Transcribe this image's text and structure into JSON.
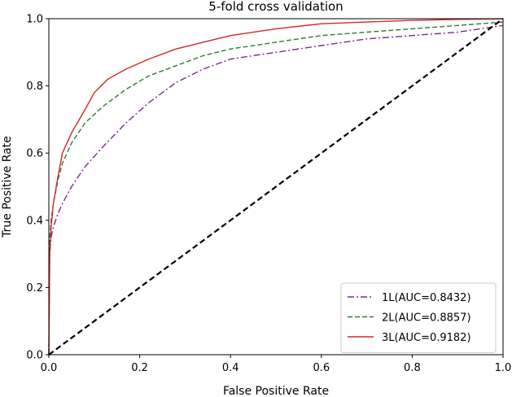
{
  "chart_data": {
    "type": "line",
    "title": "5-fold cross validation",
    "xlabel": "False Positive Rate",
    "ylabel": "True Positive Rate",
    "xlim": [
      0.0,
      1.0
    ],
    "ylim": [
      0.0,
      1.0
    ],
    "xticks": [
      "0.0",
      "0.2",
      "0.4",
      "0.6",
      "0.8",
      "1.0"
    ],
    "yticks": [
      "0.0",
      "0.2",
      "0.4",
      "0.6",
      "0.8",
      "1.0"
    ],
    "grid": false,
    "legend_position": "lower-right",
    "series": [
      {
        "name": "1L(AUC=0.8432)",
        "color": "#7b2a8b",
        "style": "dashdot",
        "x": [
          0,
          0.002,
          0.005,
          0.01,
          0.02,
          0.03,
          0.05,
          0.08,
          0.12,
          0.17,
          0.22,
          0.28,
          0.34,
          0.4,
          0.5,
          0.6,
          0.7,
          0.8,
          0.9,
          1.0
        ],
        "y": [
          0,
          0.3,
          0.35,
          0.38,
          0.42,
          0.45,
          0.5,
          0.56,
          0.62,
          0.69,
          0.75,
          0.81,
          0.85,
          0.88,
          0.9,
          0.92,
          0.94,
          0.95,
          0.96,
          0.98
        ]
      },
      {
        "name": "2L(AUC=0.8857)",
        "color": "#2e7d32",
        "style": "dashed",
        "x": [
          0,
          0.002,
          0.005,
          0.01,
          0.02,
          0.03,
          0.05,
          0.08,
          0.12,
          0.17,
          0.22,
          0.28,
          0.34,
          0.4,
          0.5,
          0.6,
          0.7,
          0.8,
          0.9,
          1.0
        ],
        "y": [
          0,
          0.35,
          0.4,
          0.45,
          0.52,
          0.57,
          0.63,
          0.69,
          0.74,
          0.79,
          0.83,
          0.86,
          0.89,
          0.91,
          0.93,
          0.95,
          0.96,
          0.97,
          0.98,
          0.99
        ]
      },
      {
        "name": "3L(AUC=0.9182)",
        "color": "#d62728",
        "style": "solid",
        "x": [
          0,
          0.002,
          0.005,
          0.01,
          0.02,
          0.03,
          0.05,
          0.08,
          0.1,
          0.13,
          0.17,
          0.22,
          0.28,
          0.34,
          0.4,
          0.5,
          0.6,
          0.7,
          0.8,
          0.9,
          1.0
        ],
        "y": [
          0,
          0.3,
          0.38,
          0.45,
          0.53,
          0.6,
          0.66,
          0.73,
          0.78,
          0.82,
          0.85,
          0.88,
          0.91,
          0.93,
          0.95,
          0.97,
          0.985,
          0.99,
          0.995,
          0.998,
          1.0
        ]
      },
      {
        "color": "#000000",
        "style": "dashed",
        "x": [
          0,
          1
        ],
        "y": [
          0,
          1
        ]
      }
    ]
  }
}
